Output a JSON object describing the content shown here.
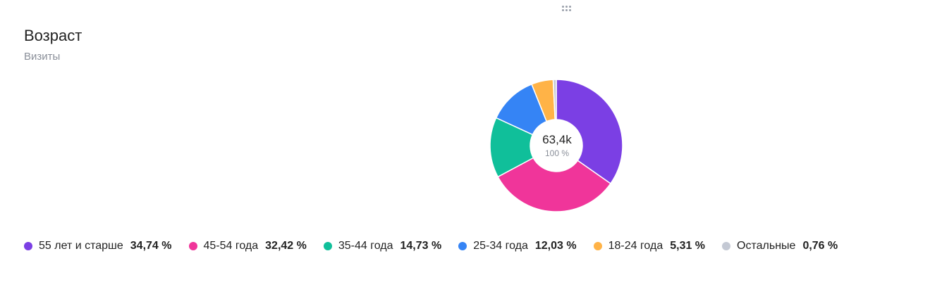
{
  "widget": {
    "title": "Возраст",
    "subtitle": "Визиты"
  },
  "chart_data": {
    "type": "pie",
    "variant": "donut",
    "total_label": "63,4k",
    "total_share": "100 %",
    "legend_placement": "bottom",
    "slices": [
      {
        "label": "55 лет и старше",
        "value": 34.74,
        "display": "34,74 %",
        "color": "#7b3fe4"
      },
      {
        "label": "45-54 года",
        "value": 32.42,
        "display": "32,42 %",
        "color": "#f0359a"
      },
      {
        "label": "35-44 года",
        "value": 14.73,
        "display": "14,73 %",
        "color": "#10bf9a"
      },
      {
        "label": "25-34 года",
        "value": 12.03,
        "display": "12,03 %",
        "color": "#3584f5"
      },
      {
        "label": "18-24 года",
        "value": 5.31,
        "display": "5,31 %",
        "color": "#ffb347"
      },
      {
        "label": "Остальные",
        "value": 0.76,
        "display": "0,76 %",
        "color": "#c4c9d4"
      }
    ]
  }
}
